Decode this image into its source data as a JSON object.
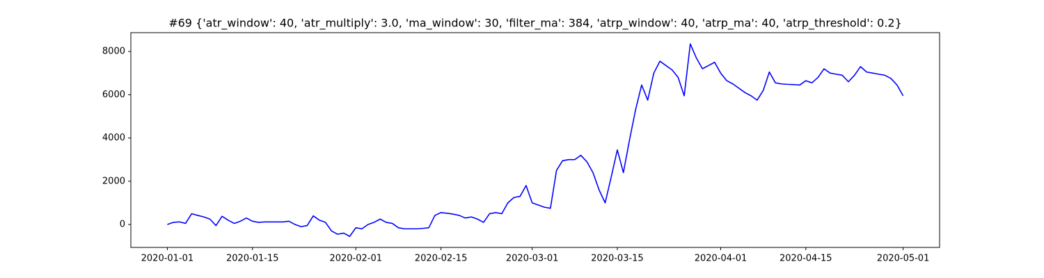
{
  "chart_data": {
    "type": "line",
    "title": "#69 {'atr_window': 40, 'atr_multiply': 3.0, 'ma_window': 30, 'filter_ma': 384, 'atrp_window': 40, 'atrp_ma': 40, 'atrp_threshold': 0.2}",
    "x": [
      "2020-01-01",
      "2020-01-02",
      "2020-01-03",
      "2020-01-04",
      "2020-01-05",
      "2020-01-06",
      "2020-01-07",
      "2020-01-08",
      "2020-01-09",
      "2020-01-10",
      "2020-01-11",
      "2020-01-12",
      "2020-01-13",
      "2020-01-14",
      "2020-01-15",
      "2020-01-16",
      "2020-01-17",
      "2020-01-18",
      "2020-01-19",
      "2020-01-20",
      "2020-01-21",
      "2020-01-22",
      "2020-01-23",
      "2020-01-24",
      "2020-01-25",
      "2020-01-26",
      "2020-01-27",
      "2020-01-28",
      "2020-01-29",
      "2020-01-30",
      "2020-01-31",
      "2020-02-01",
      "2020-02-02",
      "2020-02-03",
      "2020-02-04",
      "2020-02-05",
      "2020-02-06",
      "2020-02-07",
      "2020-02-08",
      "2020-02-09",
      "2020-02-10",
      "2020-02-11",
      "2020-02-12",
      "2020-02-13",
      "2020-02-14",
      "2020-02-15",
      "2020-02-16",
      "2020-02-17",
      "2020-02-18",
      "2020-02-19",
      "2020-02-20",
      "2020-02-21",
      "2020-02-22",
      "2020-02-23",
      "2020-02-24",
      "2020-02-25",
      "2020-02-26",
      "2020-02-27",
      "2020-02-28",
      "2020-02-29",
      "2020-03-01",
      "2020-03-02",
      "2020-03-03",
      "2020-03-04",
      "2020-03-05",
      "2020-03-06",
      "2020-03-07",
      "2020-03-08",
      "2020-03-09",
      "2020-03-10",
      "2020-03-11",
      "2020-03-12",
      "2020-03-13",
      "2020-03-14",
      "2020-03-15",
      "2020-03-16",
      "2020-03-17",
      "2020-03-18",
      "2020-03-19",
      "2020-03-20",
      "2020-03-21",
      "2020-03-22",
      "2020-03-23",
      "2020-03-24",
      "2020-03-25",
      "2020-03-26",
      "2020-03-27",
      "2020-03-28",
      "2020-03-29",
      "2020-03-30",
      "2020-03-31",
      "2020-04-01",
      "2020-04-02",
      "2020-04-03",
      "2020-04-04",
      "2020-04-05",
      "2020-04-06",
      "2020-04-07",
      "2020-04-08",
      "2020-04-09",
      "2020-04-10",
      "2020-04-11",
      "2020-04-12",
      "2020-04-13",
      "2020-04-14",
      "2020-04-15",
      "2020-04-16",
      "2020-04-17",
      "2020-04-18",
      "2020-04-19",
      "2020-04-20",
      "2020-04-21",
      "2020-04-22",
      "2020-04-23",
      "2020-04-24",
      "2020-04-25",
      "2020-04-26",
      "2020-04-27",
      "2020-04-28",
      "2020-04-29",
      "2020-04-30",
      "2020-05-01"
    ],
    "series": [
      {
        "color": "#0000ff",
        "values": [
          0,
          100,
          120,
          50,
          500,
          420,
          350,
          250,
          -50,
          380,
          200,
          50,
          150,
          300,
          150,
          100,
          120,
          120,
          120,
          120,
          150,
          0,
          -100,
          -50,
          400,
          200,
          100,
          -300,
          -450,
          -400,
          -550,
          -150,
          -200,
          0,
          100,
          250,
          100,
          50,
          -150,
          -200,
          -200,
          -200,
          -180,
          -150,
          420,
          550,
          520,
          480,
          420,
          300,
          350,
          250,
          100,
          500,
          550,
          500,
          1000,
          1250,
          1300,
          1800,
          1000,
          900,
          800,
          750,
          2500,
          2950,
          3000,
          3000,
          3200,
          2900,
          2400,
          1600,
          1000,
          2200,
          3450,
          2400,
          3900,
          5300,
          6450,
          5750,
          7000,
          7550,
          7350,
          7150,
          6800,
          5950,
          8350,
          7700,
          7200,
          7350,
          7500,
          7000,
          6650,
          6500,
          6300,
          6100,
          5950,
          5750,
          6200,
          7050,
          6550,
          6500,
          6480,
          6470,
          6450,
          6650,
          6550,
          6800,
          7200,
          7000,
          6950,
          6900,
          6600,
          6900,
          7300,
          7050,
          7000,
          6950,
          6900,
          6750,
          6450,
          5950
        ]
      }
    ],
    "xlim": [
      "2019-12-26",
      "2020-05-07"
    ],
    "xticks": [
      "2020-01-01",
      "2020-01-15",
      "2020-02-01",
      "2020-02-15",
      "2020-03-01",
      "2020-03-15",
      "2020-04-01",
      "2020-04-15",
      "2020-05-01"
    ],
    "ylim": [
      -1060,
      8870
    ],
    "yticks": [
      0,
      2000,
      4000,
      6000,
      8000
    ]
  }
}
